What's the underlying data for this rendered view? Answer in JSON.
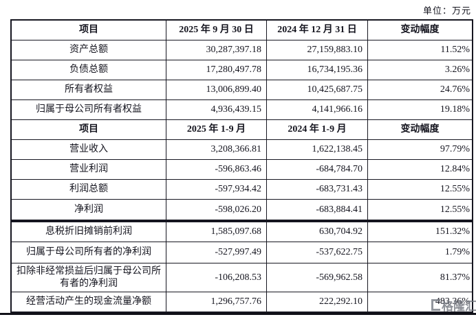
{
  "unit_label": "单位：万元",
  "watermark": {
    "text": "格隆汇"
  },
  "colors": {
    "text": "#14141e",
    "border": "#15151f",
    "watermark": "#70747d"
  },
  "table_balance": {
    "header": [
      "项目",
      "2025 年 9 月 30 日",
      "2024 年 12 月 31 日",
      "变动幅度"
    ],
    "rows": [
      [
        "资产总额",
        "30,287,397.18",
        "27,159,883.10",
        "11.52%"
      ],
      [
        "负债总额",
        "17,280,497.78",
        "16,734,195.36",
        "3.26%"
      ],
      [
        "所有者权益",
        "13,006,899.40",
        "10,425,687.75",
        "24.76%"
      ],
      [
        "归属于母公司所有者权益",
        "4,936,439.15",
        "4,141,966.16",
        "19.18%"
      ]
    ],
    "header2": [
      "项目",
      "2025 年 1-9 月",
      "2024 年 1-9 月",
      "变动幅度"
    ],
    "rows2": [
      [
        "营业收入",
        "3,208,366.81",
        "1,622,138.45",
        "97.79%"
      ],
      [
        "营业利润",
        "-596,863.46",
        "-684,784.70",
        "12.84%"
      ],
      [
        "利润总额",
        "-597,934.42",
        "-683,731.43",
        "12.55%"
      ],
      [
        "净利润",
        "-598,026.20",
        "-683,884.41",
        "12.55%"
      ]
    ]
  },
  "table_supplement": {
    "rows": [
      [
        "息税折旧摊销前利润",
        "1,585,097.68",
        "630,704.92",
        "151.32%"
      ],
      [
        "归属于母公司所有者的净利润",
        "-527,997.49",
        "-537,622.75",
        "1.79%"
      ],
      [
        "扣除非经常损益后归属于母公司所有者的净利润",
        "-106,208.53",
        "-569,962.58",
        "81.37%"
      ],
      [
        "经营活动产生的现金流量净额",
        "1,296,757.76",
        "222,292.10",
        "483.36%"
      ]
    ]
  }
}
